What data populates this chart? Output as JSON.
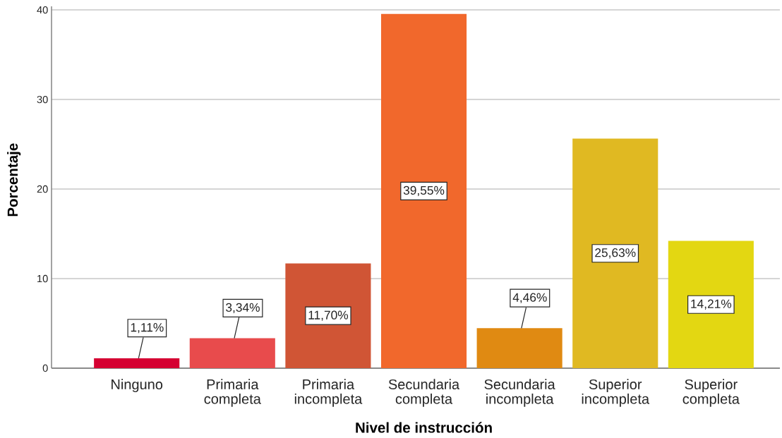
{
  "chart_data": {
    "type": "bar",
    "xlabel": "Nivel de instrucción",
    "ylabel": "Porcentaje",
    "categories": [
      "Ninguno",
      "Primaria completa",
      "Primaria incompleta",
      "Secundaria completa",
      "Secundaria incompleta",
      "Superior incompleta",
      "Superior completa"
    ],
    "values": [
      1.11,
      3.34,
      11.7,
      39.55,
      4.46,
      25.63,
      14.21
    ],
    "colors": [
      "#d50032",
      "#e84b4c",
      "#d05535",
      "#f1682c",
      "#e08a12",
      "#e0b922",
      "#e3d712"
    ],
    "value_labels": [
      "1,11%",
      "3,34%",
      "11,70%",
      "39,55%",
      "4,46%",
      "25,63%",
      "14,21%"
    ],
    "ylim": [
      0,
      40.4
    ],
    "yticks": [
      0,
      10,
      20,
      30,
      40
    ],
    "grid": "y"
  }
}
